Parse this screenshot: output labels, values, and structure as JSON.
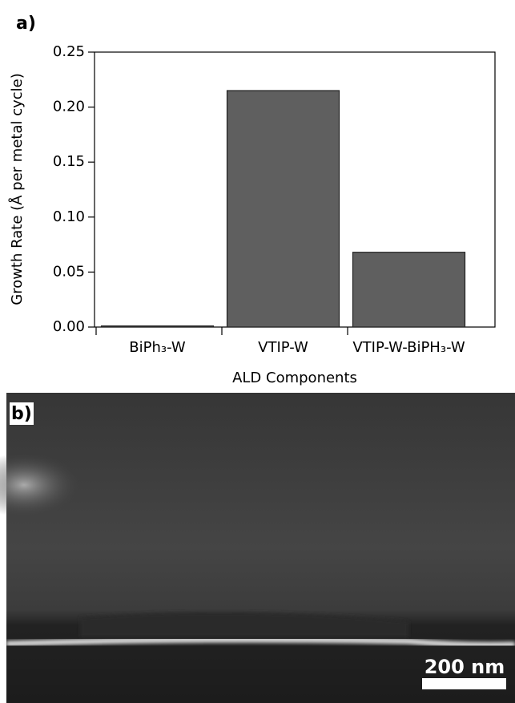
{
  "panel_labels": [
    "a)",
    "b)"
  ],
  "scale_bar_label": "200 nm",
  "chart_data": {
    "type": "bar",
    "y_label": "Growth Rate (Å per metal cycle)",
    "x_label": "ALD Components",
    "categories": [
      "BiPh₃-W",
      "VTIP-W",
      "VTIP-W-BiPH₃-W"
    ],
    "values": [
      0.001,
      0.215,
      0.068
    ],
    "color": "#5f5f5f",
    "ylim": [
      0,
      0.25
    ],
    "yticks": [
      {
        "value": 0,
        "label": "0.00"
      },
      {
        "value": 0.05,
        "label": "0.05"
      },
      {
        "value": 0.1,
        "label": "0.10"
      },
      {
        "value": 0.15,
        "label": "0.15"
      },
      {
        "value": 0.2,
        "label": "0.20"
      },
      {
        "value": 0.25,
        "label": "0.25"
      }
    ],
    "grid": false
  }
}
